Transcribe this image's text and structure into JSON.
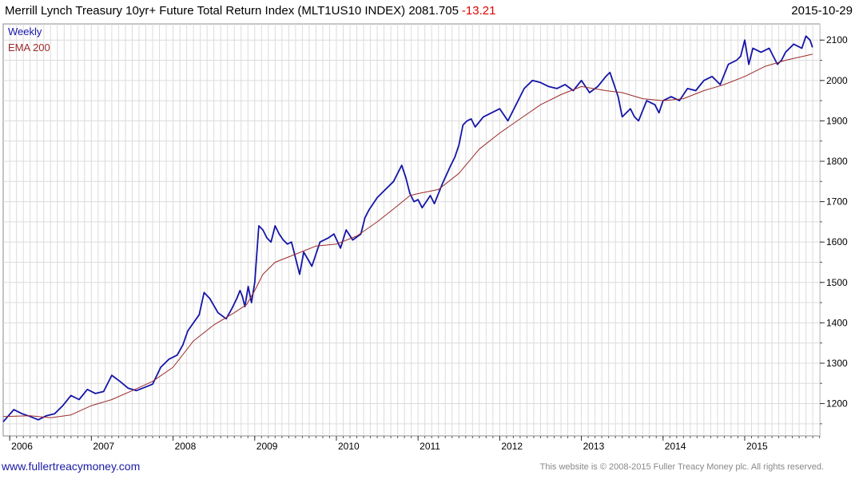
{
  "header": {
    "title": "Merrill Lynch Treasury 10yr+ Future Total Return Index (MLT1US10 INDEX)",
    "last_value": "2081.705",
    "change": "-13.21",
    "date": "2015-10-29"
  },
  "footer": {
    "left_link": "www.fullertreacymoney.com",
    "right_text": "This website is © 2008-2015 Fuller Treacy Money plc. All rights reserved."
  },
  "colors": {
    "weekly": "#1515a8",
    "ema": "#9b2a2a",
    "change": "#e00000",
    "grid": "#dcdcdc"
  },
  "chart_data": {
    "type": "line",
    "x_ticks": [
      "2006",
      "2007",
      "2008",
      "2009",
      "2010",
      "2011",
      "2012",
      "2013",
      "2014",
      "2015"
    ],
    "y_ticks": [
      1200,
      1300,
      1400,
      1500,
      1600,
      1700,
      1800,
      1900,
      2000,
      2100
    ],
    "xlim": [
      2005.92,
      2015.92
    ],
    "ylim": [
      1120,
      2140
    ],
    "grid": true,
    "legend": "top-left",
    "series": [
      {
        "name": "Weekly",
        "x": [
          2005.92,
          2006.05,
          2006.15,
          2006.25,
          2006.35,
          2006.45,
          2006.55,
          2006.65,
          2006.75,
          2006.85,
          2006.95,
          2007.05,
          2007.15,
          2007.25,
          2007.35,
          2007.45,
          2007.55,
          2007.65,
          2007.75,
          2007.85,
          2007.95,
          2008.05,
          2008.12,
          2008.18,
          2008.25,
          2008.32,
          2008.38,
          2008.45,
          2008.55,
          2008.65,
          2008.72,
          2008.78,
          2008.82,
          2008.85,
          2008.88,
          2008.92,
          2008.96,
          2009.0,
          2009.05,
          2009.1,
          2009.15,
          2009.2,
          2009.25,
          2009.3,
          2009.35,
          2009.4,
          2009.45,
          2009.5,
          2009.55,
          2009.6,
          2009.7,
          2009.8,
          2009.9,
          2009.97,
          2010.05,
          2010.12,
          2010.2,
          2010.3,
          2010.35,
          2010.4,
          2010.5,
          2010.6,
          2010.7,
          2010.75,
          2010.8,
          2010.85,
          2010.9,
          2010.95,
          2011.0,
          2011.05,
          2011.1,
          2011.15,
          2011.2,
          2011.3,
          2011.4,
          2011.45,
          2011.5,
          2011.55,
          2011.6,
          2011.65,
          2011.7,
          2011.8,
          2011.9,
          2012.0,
          2012.1,
          2012.2,
          2012.3,
          2012.4,
          2012.5,
          2012.6,
          2012.7,
          2012.8,
          2012.9,
          2013.0,
          2013.1,
          2013.2,
          2013.3,
          2013.35,
          2013.4,
          2013.45,
          2013.5,
          2013.6,
          2013.65,
          2013.7,
          2013.8,
          2013.9,
          2013.95,
          2014.0,
          2014.1,
          2014.2,
          2014.3,
          2014.4,
          2014.5,
          2014.6,
          2014.7,
          2014.8,
          2014.9,
          2014.95,
          2015.0,
          2015.05,
          2015.1,
          2015.2,
          2015.3,
          2015.4,
          2015.45,
          2015.5,
          2015.6,
          2015.7,
          2015.75,
          2015.8,
          2015.83
        ],
        "y": [
          1155,
          1185,
          1175,
          1168,
          1160,
          1170,
          1175,
          1195,
          1220,
          1210,
          1235,
          1225,
          1230,
          1270,
          1255,
          1238,
          1232,
          1240,
          1248,
          1290,
          1310,
          1320,
          1345,
          1380,
          1400,
          1420,
          1475,
          1460,
          1425,
          1410,
          1435,
          1460,
          1480,
          1465,
          1440,
          1490,
          1450,
          1500,
          1640,
          1630,
          1610,
          1600,
          1640,
          1620,
          1605,
          1595,
          1600,
          1560,
          1520,
          1575,
          1540,
          1600,
          1610,
          1620,
          1585,
          1630,
          1605,
          1620,
          1660,
          1680,
          1710,
          1730,
          1750,
          1770,
          1790,
          1760,
          1720,
          1700,
          1705,
          1685,
          1700,
          1715,
          1695,
          1745,
          1790,
          1810,
          1840,
          1890,
          1900,
          1905,
          1885,
          1910,
          1920,
          1930,
          1900,
          1940,
          1980,
          2000,
          1995,
          1985,
          1980,
          1990,
          1975,
          2000,
          1970,
          1985,
          2010,
          2020,
          1990,
          1960,
          1910,
          1930,
          1910,
          1900,
          1950,
          1940,
          1920,
          1950,
          1960,
          1950,
          1980,
          1975,
          2000,
          2010,
          1990,
          2040,
          2050,
          2060,
          2100,
          2040,
          2080,
          2070,
          2080,
          2040,
          2050,
          2070,
          2090,
          2080,
          2110,
          2100,
          2082
        ]
      },
      {
        "name": "EMA 200",
        "x": [
          2005.92,
          2006.25,
          2006.5,
          2006.75,
          2007.0,
          2007.25,
          2007.5,
          2007.75,
          2008.0,
          2008.25,
          2008.5,
          2008.75,
          2008.9,
          2009.0,
          2009.1,
          2009.25,
          2009.5,
          2009.75,
          2010.0,
          2010.25,
          2010.5,
          2010.75,
          2010.9,
          2011.0,
          2011.25,
          2011.5,
          2011.75,
          2012.0,
          2012.25,
          2012.5,
          2012.75,
          2013.0,
          2013.3,
          2013.5,
          2013.75,
          2014.0,
          2014.25,
          2014.5,
          2014.75,
          2015.0,
          2015.25,
          2015.5,
          2015.83
        ],
        "y": [
          1168,
          1170,
          1165,
          1172,
          1195,
          1210,
          1232,
          1255,
          1290,
          1355,
          1395,
          1425,
          1445,
          1480,
          1520,
          1550,
          1570,
          1590,
          1595,
          1615,
          1650,
          1690,
          1715,
          1720,
          1730,
          1770,
          1830,
          1870,
          1905,
          1940,
          1965,
          1985,
          1975,
          1970,
          1955,
          1950,
          1955,
          1975,
          1990,
          2010,
          2035,
          2050,
          2065
        ]
      }
    ]
  }
}
